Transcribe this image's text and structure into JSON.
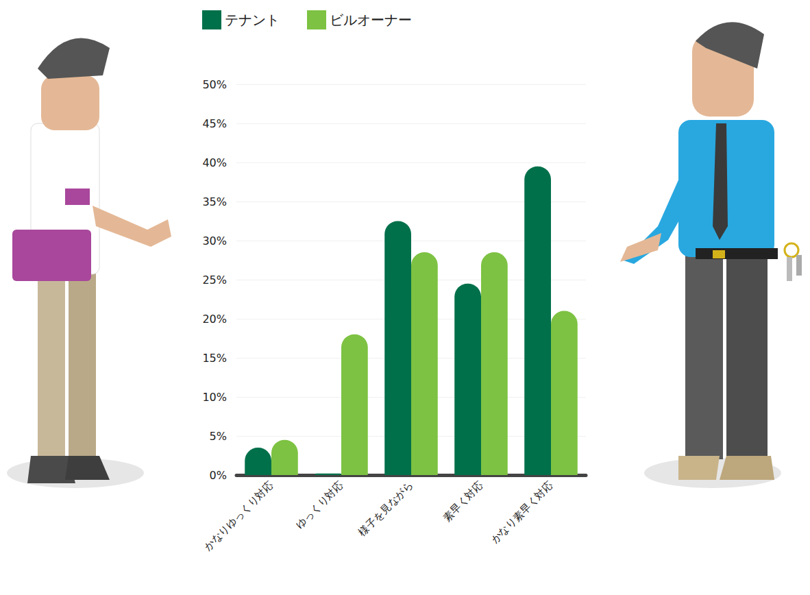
{
  "chart_data": {
    "type": "bar",
    "categories": [
      "かなりゆっくり対応",
      "ゆっくり対応",
      "様子を見ながら",
      "素早く対応",
      "かなり素早く対応"
    ],
    "series": [
      {
        "name": "テナント",
        "color": "#00704a",
        "values": [
          3.5,
          0.2,
          32.5,
          24.5,
          39.5
        ]
      },
      {
        "name": "ビルオーナー",
        "color": "#7dc242",
        "values": [
          4.5,
          18,
          28.5,
          28.5,
          21
        ]
      }
    ],
    "ylim": [
      0,
      50
    ],
    "yticks": [
      {
        "value": 0,
        "label": "0%"
      },
      {
        "value": 5,
        "label": "5%"
      },
      {
        "value": 10,
        "label": "10%"
      },
      {
        "value": 15,
        "label": "15%"
      },
      {
        "value": 20,
        "label": "20%"
      },
      {
        "value": 25,
        "label": "25%"
      },
      {
        "value": 30,
        "label": "30%"
      },
      {
        "value": 35,
        "label": "35%"
      },
      {
        "value": 40,
        "label": "40%"
      },
      {
        "value": 45,
        "label": "45%"
      },
      {
        "value": 50,
        "label": "50%"
      }
    ],
    "grid": true,
    "legend": "top",
    "data_labels": false
  }
}
